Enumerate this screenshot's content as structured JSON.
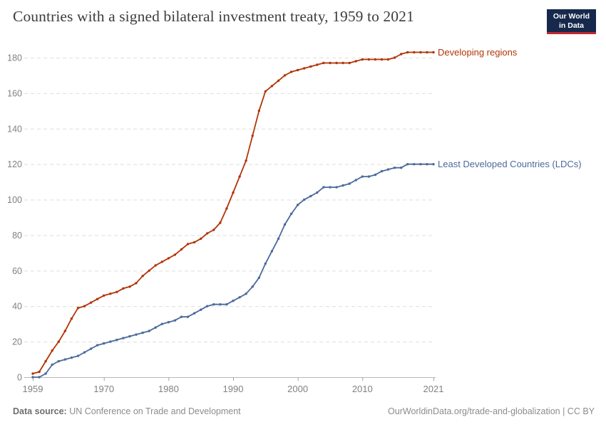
{
  "header": {
    "title": "Countries with a signed bilateral investment treaty, 1959 to 2021",
    "logo": {
      "line1": "Our World",
      "line2": "in Data"
    }
  },
  "footer": {
    "source_label": "Data source:",
    "source_text": "UN Conference on Trade and Development",
    "right_text": "OurWorldinData.org/trade-and-globalization | CC BY"
  },
  "chart_data": {
    "type": "line",
    "title": "Countries with a signed bilateral investment treaty, 1959 to 2021",
    "xlabel": "",
    "ylabel": "",
    "grid": "dashed-horizontal",
    "legend_position": "end-of-line-labels",
    "xlim": [
      1959,
      2021
    ],
    "ylim": [
      0,
      190
    ],
    "xticks": [
      1959,
      1970,
      1980,
      1990,
      2000,
      2010,
      2021
    ],
    "yticks": [
      0,
      20,
      40,
      60,
      80,
      100,
      120,
      140,
      160,
      180
    ],
    "x": [
      1959,
      1960,
      1961,
      1962,
      1963,
      1964,
      1965,
      1966,
      1967,
      1968,
      1969,
      1970,
      1971,
      1972,
      1973,
      1974,
      1975,
      1976,
      1977,
      1978,
      1979,
      1980,
      1981,
      1982,
      1983,
      1984,
      1985,
      1986,
      1987,
      1988,
      1989,
      1990,
      1991,
      1992,
      1993,
      1994,
      1995,
      1996,
      1997,
      1998,
      1999,
      2000,
      2001,
      2002,
      2003,
      2004,
      2005,
      2006,
      2007,
      2008,
      2009,
      2010,
      2011,
      2012,
      2013,
      2014,
      2015,
      2016,
      2017,
      2018,
      2019,
      2020,
      2021
    ],
    "series": [
      {
        "name": "Developing regions",
        "color": "#B13507",
        "values": [
          2,
          3,
          9,
          15,
          20,
          26,
          33,
          39,
          40,
          42,
          44,
          46,
          47,
          48,
          50,
          51,
          53,
          57,
          60,
          63,
          65,
          67,
          69,
          72,
          75,
          76,
          78,
          81,
          83,
          87,
          95,
          104,
          113,
          122,
          136,
          150,
          161,
          164,
          167,
          170,
          172,
          173,
          174,
          175,
          176,
          177,
          177,
          177,
          177,
          177,
          178,
          179,
          179,
          179,
          179,
          179,
          180,
          182,
          183,
          183,
          183,
          183,
          183
        ]
      },
      {
        "name": "Least Developed Countries (LDCs)",
        "color": "#4C6A9C",
        "values": [
          0,
          0,
          2,
          7,
          9,
          10,
          11,
          12,
          14,
          16,
          18,
          19,
          20,
          21,
          22,
          23,
          24,
          25,
          26,
          28,
          30,
          31,
          32,
          34,
          34,
          36,
          38,
          40,
          41,
          41,
          41,
          43,
          45,
          47,
          51,
          56,
          64,
          71,
          78,
          86,
          92,
          97,
          100,
          102,
          104,
          107,
          107,
          107,
          108,
          109,
          111,
          113,
          113,
          114,
          116,
          117,
          118,
          118,
          120,
          120,
          120,
          120,
          120
        ]
      }
    ]
  }
}
